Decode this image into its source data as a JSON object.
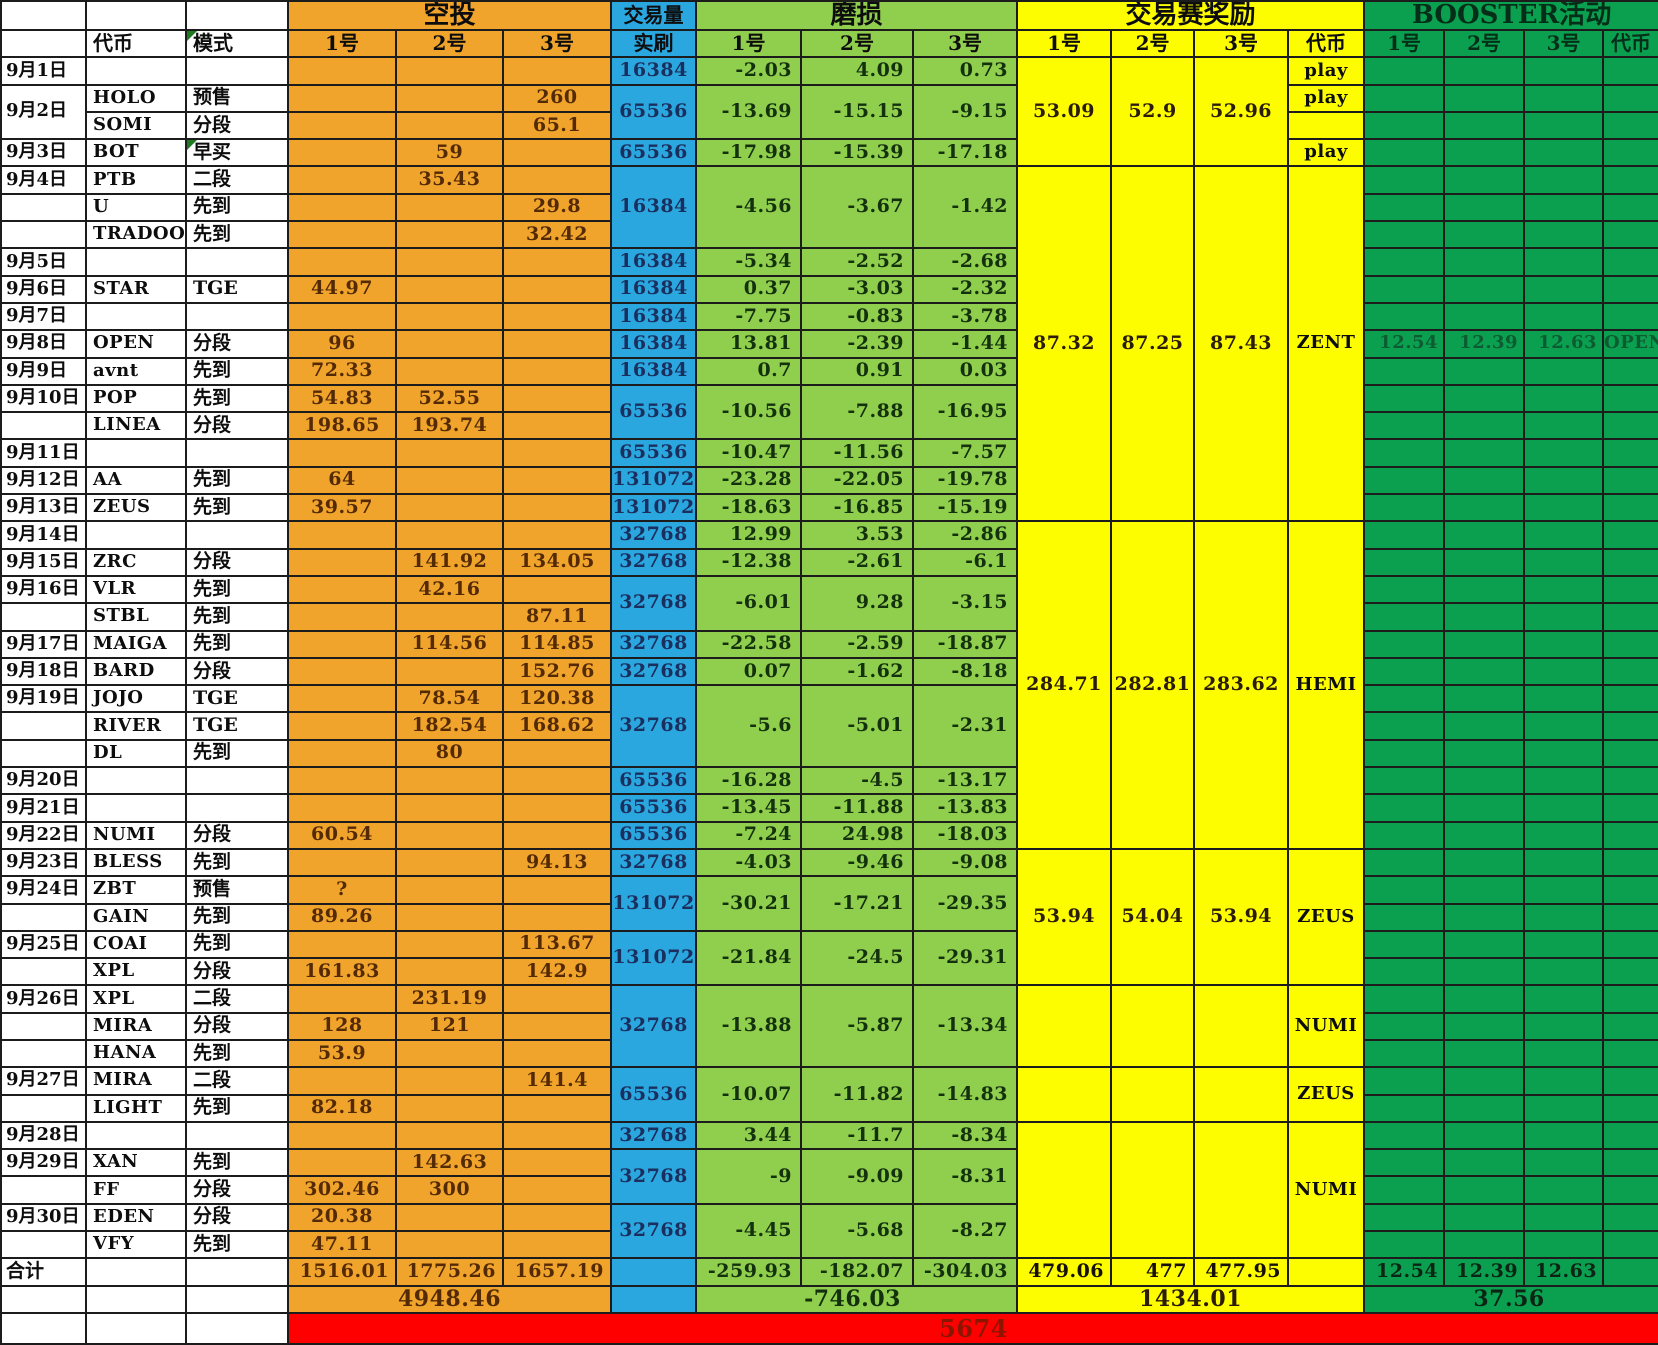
{
  "header": {
    "airdrop_group": "空投",
    "volume_group": "交易量",
    "wear_group": "磨损",
    "reward_group": "交易赛奖励",
    "booster_group": "BOOSTER活动",
    "token_col": "代币",
    "mode_col": "模式",
    "volume_col": "实刷",
    "sub_1": "1号",
    "sub_2": "2号",
    "sub_3": "3号"
  },
  "rows": [
    {
      "date": "9月1日",
      "token": "",
      "mode": "",
      "airdrop": [
        "",
        "",
        ""
      ]
    },
    {
      "date": "9月2日",
      "date_span": 2,
      "token": "HOLO",
      "mode": "预售",
      "airdrop": [
        "",
        "",
        "260"
      ]
    },
    {
      "date": null,
      "token": "SOMI",
      "mode": "分段",
      "airdrop": [
        "",
        "",
        "65.1"
      ]
    },
    {
      "date": "9月3日",
      "token": "BOT",
      "mode": "早买",
      "mode_note": true,
      "airdrop": [
        "",
        "59",
        ""
      ]
    },
    {
      "date": "9月4日",
      "token": "PTB",
      "mode": "二段",
      "airdrop": [
        "",
        "35.43",
        ""
      ]
    },
    {
      "date": "",
      "token": "U",
      "mode": "先到",
      "airdrop": [
        "",
        "",
        "29.8"
      ]
    },
    {
      "date": "",
      "token": "TRADOOR",
      "mode": "先到",
      "airdrop": [
        "",
        "",
        "32.42"
      ]
    },
    {
      "date": "9月5日",
      "token": "",
      "mode": "",
      "airdrop": [
        "",
        "",
        ""
      ]
    },
    {
      "date": "9月6日",
      "token": "STAR",
      "mode": "TGE",
      "airdrop": [
        "44.97",
        "",
        ""
      ]
    },
    {
      "date": "9月7日",
      "token": "",
      "mode": "",
      "airdrop": [
        "",
        "",
        ""
      ]
    },
    {
      "date": "9月8日",
      "token": "OPEN",
      "mode": "分段",
      "airdrop": [
        "96",
        "",
        ""
      ],
      "booster": [
        "12.54",
        "12.39",
        "12.63"
      ],
      "booster_token": "OPEN"
    },
    {
      "date": "9月9日",
      "token": "avnt",
      "mode": "先到",
      "airdrop": [
        "72.33",
        "",
        ""
      ]
    },
    {
      "date": "9月10日",
      "token": "POP",
      "mode": "先到",
      "airdrop": [
        "54.83",
        "52.55",
        ""
      ]
    },
    {
      "date": "",
      "token": "LINEA",
      "mode": "分段",
      "airdrop": [
        "198.65",
        "193.74",
        ""
      ]
    },
    {
      "date": "9月11日",
      "token": "",
      "mode": "",
      "airdrop": [
        "",
        "",
        ""
      ]
    },
    {
      "date": "9月12日",
      "token": "AA",
      "mode": "先到",
      "airdrop": [
        "64",
        "",
        ""
      ]
    },
    {
      "date": "9月13日",
      "token": "ZEUS",
      "mode": "先到",
      "airdrop": [
        "39.57",
        "",
        ""
      ]
    },
    {
      "date": "9月14日",
      "token": "",
      "mode": "",
      "airdrop": [
        "",
        "",
        ""
      ]
    },
    {
      "date": "9月15日",
      "token": "ZRC",
      "mode": "分段",
      "airdrop": [
        "",
        "141.92",
        "134.05"
      ]
    },
    {
      "date": "9月16日",
      "token": "VLR",
      "mode": "先到",
      "airdrop": [
        "",
        "42.16",
        ""
      ]
    },
    {
      "date": "",
      "token": "STBL",
      "mode": "先到",
      "airdrop": [
        "",
        "",
        "87.11"
      ]
    },
    {
      "date": "9月17日",
      "token": "MAIGA",
      "mode": "先到",
      "airdrop": [
        "",
        "114.56",
        "114.85"
      ]
    },
    {
      "date": "9月18日",
      "token": "BARD",
      "mode": "分段",
      "airdrop": [
        "",
        "",
        "152.76"
      ]
    },
    {
      "date": "9月19日",
      "token": "JOJO",
      "mode": "TGE",
      "airdrop": [
        "",
        "78.54",
        "120.38"
      ]
    },
    {
      "date": "",
      "token": "RIVER",
      "mode": "TGE",
      "airdrop": [
        "",
        "182.54",
        "168.62"
      ]
    },
    {
      "date": "",
      "token": "DL",
      "mode": "先到",
      "airdrop": [
        "",
        "80",
        ""
      ]
    },
    {
      "date": "9月20日",
      "token": "",
      "mode": "",
      "airdrop": [
        "",
        "",
        ""
      ]
    },
    {
      "date": "9月21日",
      "token": "",
      "mode": "",
      "airdrop": [
        "",
        "",
        ""
      ]
    },
    {
      "date": "9月22日",
      "token": "NUMI",
      "mode": "分段",
      "airdrop": [
        "60.54",
        "",
        ""
      ]
    },
    {
      "date": "9月23日",
      "token": "BLESS",
      "mode": "先到",
      "airdrop": [
        "",
        "",
        "94.13"
      ]
    },
    {
      "date": "9月24日",
      "token": "ZBT",
      "mode": "预售",
      "airdrop": [
        "?",
        "",
        ""
      ]
    },
    {
      "date": "",
      "token": "GAIN",
      "mode": "先到",
      "airdrop": [
        "89.26",
        "",
        ""
      ]
    },
    {
      "date": "9月25日",
      "token": "COAI",
      "mode": "先到",
      "airdrop": [
        "",
        "",
        "113.67"
      ]
    },
    {
      "date": "",
      "token": "XPL",
      "mode": "分段",
      "airdrop": [
        "161.83",
        "",
        "142.9"
      ]
    },
    {
      "date": "9月26日",
      "token": "XPL",
      "mode": "二段",
      "airdrop": [
        "",
        "231.19",
        ""
      ]
    },
    {
      "date": "",
      "token": "MIRA",
      "mode": "分段",
      "airdrop": [
        "128",
        "121",
        ""
      ]
    },
    {
      "date": "",
      "token": "HANA",
      "mode": "先到",
      "airdrop": [
        "53.9",
        "",
        ""
      ]
    },
    {
      "date": "9月27日",
      "token": "MIRA",
      "mode": "二段",
      "airdrop": [
        "",
        "",
        "141.4"
      ]
    },
    {
      "date": "",
      "token": "LIGHT",
      "mode": "先到",
      "airdrop": [
        "82.18",
        "",
        ""
      ]
    },
    {
      "date": "9月28日",
      "token": "",
      "mode": "",
      "airdrop": [
        "",
        "",
        ""
      ]
    },
    {
      "date": "9月29日",
      "token": "XAN",
      "mode": "先到",
      "airdrop": [
        "",
        "142.63",
        ""
      ]
    },
    {
      "date": "",
      "token": "FF",
      "mode": "分段",
      "airdrop": [
        "302.46",
        "300",
        ""
      ]
    },
    {
      "date": "9月30日",
      "token": "EDEN",
      "mode": "分段",
      "airdrop": [
        "20.38",
        "",
        ""
      ]
    },
    {
      "date": "",
      "token": "VFY",
      "mode": "先到",
      "airdrop": [
        "47.11",
        "",
        ""
      ]
    }
  ],
  "volume_blocks": [
    {
      "rows": [
        1
      ],
      "volume": "16384",
      "wear": [
        "-2.03",
        "4.09",
        "0.73"
      ]
    },
    {
      "rows": [
        2,
        3
      ],
      "volume": "65536",
      "wear": [
        "-13.69",
        "-15.15",
        "-9.15"
      ]
    },
    {
      "rows": [
        4
      ],
      "volume": "65536",
      "wear": [
        "-17.98",
        "-15.39",
        "-17.18"
      ]
    },
    {
      "rows": [
        5,
        6,
        7
      ],
      "volume": "16384",
      "wear": [
        "-4.56",
        "-3.67",
        "-1.42"
      ]
    },
    {
      "rows": [
        8
      ],
      "volume": "16384",
      "wear": [
        "-5.34",
        "-2.52",
        "-2.68"
      ]
    },
    {
      "rows": [
        9
      ],
      "volume": "16384",
      "wear": [
        "0.37",
        "-3.03",
        "-2.32"
      ]
    },
    {
      "rows": [
        10
      ],
      "volume": "16384",
      "wear": [
        "-7.75",
        "-0.83",
        "-3.78"
      ]
    },
    {
      "rows": [
        11
      ],
      "volume": "16384",
      "wear": [
        "13.81",
        "-2.39",
        "-1.44"
      ]
    },
    {
      "rows": [
        12
      ],
      "volume": "16384",
      "wear": [
        "0.7",
        "0.91",
        "0.03"
      ]
    },
    {
      "rows": [
        13,
        14
      ],
      "volume": "65536",
      "wear": [
        "-10.56",
        "-7.88",
        "-16.95"
      ]
    },
    {
      "rows": [
        15
      ],
      "volume": "65536",
      "wear": [
        "-10.47",
        "-11.56",
        "-7.57"
      ]
    },
    {
      "rows": [
        16
      ],
      "volume": "131072",
      "wear": [
        "-23.28",
        "-22.05",
        "-19.78"
      ]
    },
    {
      "rows": [
        17
      ],
      "volume": "131072",
      "wear": [
        "-18.63",
        "-16.85",
        "-15.19"
      ]
    },
    {
      "rows": [
        18
      ],
      "volume": "32768",
      "wear": [
        "12.99",
        "3.53",
        "-2.86"
      ]
    },
    {
      "rows": [
        19
      ],
      "volume": "32768",
      "wear": [
        "-12.38",
        "-2.61",
        "-6.1"
      ]
    },
    {
      "rows": [
        20,
        21
      ],
      "volume": "32768",
      "wear": [
        "-6.01",
        "9.28",
        "-3.15"
      ]
    },
    {
      "rows": [
        22
      ],
      "volume": "32768",
      "wear": [
        "-22.58",
        "-2.59",
        "-18.87"
      ]
    },
    {
      "rows": [
        23
      ],
      "volume": "32768",
      "wear": [
        "0.07",
        "-1.62",
        "-8.18"
      ]
    },
    {
      "rows": [
        24,
        25,
        26
      ],
      "volume": "32768",
      "wear": [
        "-5.6",
        "-5.01",
        "-2.31"
      ]
    },
    {
      "rows": [
        27
      ],
      "volume": "65536",
      "wear": [
        "-16.28",
        "-4.5",
        "-13.17"
      ]
    },
    {
      "rows": [
        28
      ],
      "volume": "65536",
      "wear": [
        "-13.45",
        "-11.88",
        "-13.83"
      ]
    },
    {
      "rows": [
        29
      ],
      "volume": "65536",
      "wear": [
        "-7.24",
        "24.98",
        "-18.03"
      ]
    },
    {
      "rows": [
        30
      ],
      "volume": "32768",
      "wear": [
        "-4.03",
        "-9.46",
        "-9.08"
      ]
    },
    {
      "rows": [
        31,
        32
      ],
      "volume": "131072",
      "wear": [
        "-30.21",
        "-17.21",
        "-29.35"
      ]
    },
    {
      "rows": [
        33,
        34
      ],
      "volume": "131072",
      "wear": [
        "-21.84",
        "-24.5",
        "-29.31"
      ]
    },
    {
      "rows": [
        35,
        36,
        37
      ],
      "volume": "32768",
      "wear": [
        "-13.88",
        "-5.87",
        "-13.34"
      ]
    },
    {
      "rows": [
        38,
        39
      ],
      "volume": "65536",
      "wear": [
        "-10.07",
        "-11.82",
        "-14.83"
      ]
    },
    {
      "rows": [
        40
      ],
      "volume": "32768",
      "wear": [
        "3.44",
        "-11.7",
        "-8.34"
      ]
    },
    {
      "rows": [
        41,
        42
      ],
      "volume": "32768",
      "wear": [
        "-9",
        "-9.09",
        "-8.31"
      ]
    },
    {
      "rows": [
        43,
        44
      ],
      "volume": "32768",
      "wear": [
        "-4.45",
        "-5.68",
        "-8.27"
      ]
    }
  ],
  "reward_regions": [
    {
      "rows": [
        1,
        4
      ],
      "values": [
        "53.09",
        "52.9",
        "52.96"
      ],
      "per_row_token": [
        "play",
        "play",
        "",
        "play"
      ]
    },
    {
      "rows": [
        5,
        17
      ],
      "values": [
        "87.32",
        "87.25",
        "87.43"
      ],
      "token": "ZENT"
    },
    {
      "rows": [
        18,
        29
      ],
      "values": [
        "284.71",
        "282.81",
        "283.62"
      ],
      "token": "HEMI"
    },
    {
      "rows": [
        30,
        34
      ],
      "values": [
        "53.94",
        "54.04",
        "53.94"
      ],
      "token": "ZEUS"
    },
    {
      "rows": [
        35,
        37
      ],
      "values": [
        "",
        "",
        ""
      ],
      "token": "NUMI"
    },
    {
      "rows": [
        38,
        39
      ],
      "values": [
        "",
        "",
        ""
      ],
      "token": "ZEUS"
    },
    {
      "rows": [
        40,
        44
      ],
      "values": [
        "",
        "",
        ""
      ],
      "token": "NUMI"
    }
  ],
  "totals": {
    "label": "合计",
    "airdrop": [
      "1516.01",
      "1775.26",
      "1657.19"
    ],
    "airdrop_sum": "4948.46",
    "wear": [
      "-259.93",
      "-182.07",
      "-304.03"
    ],
    "wear_sum": "-746.03",
    "reward": [
      "479.06",
      "477",
      "477.95"
    ],
    "reward_sum": "1434.01",
    "booster": [
      "12.54",
      "12.39",
      "12.63"
    ],
    "booster_sum": "37.56",
    "grand_total": "5674"
  },
  "colors": {
    "airdrop_bg": "#f0a42c",
    "volume_bg": "#2ba7e0",
    "wear_bg": "#90ce4d",
    "reward_bg": "#fdfd00",
    "booster_bg": "#0aa050",
    "grand_total_bg": "#fe0000",
    "grid_line": "#1c1c1c"
  }
}
